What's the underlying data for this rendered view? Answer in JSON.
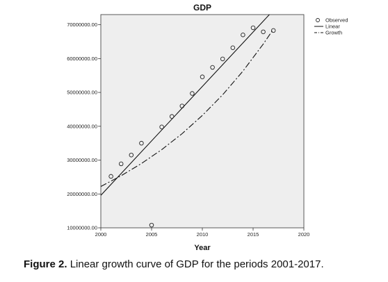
{
  "chart_data": {
    "type": "scatter",
    "title": "GDP",
    "xlabel": "Year",
    "ylabel": "",
    "xlim": [
      2000,
      2020
    ],
    "ylim": [
      10000000,
      73000000
    ],
    "xticks": [
      2000,
      2005,
      2010,
      2015,
      2020
    ],
    "xtick_labels": [
      "2000",
      "2005",
      "2010",
      "2015",
      "2020"
    ],
    "yticks": [
      10000000,
      20000000,
      30000000,
      40000000,
      50000000,
      60000000,
      70000000
    ],
    "ytick_labels": [
      "10000000.00",
      "20000000.00",
      "30000000.00",
      "40000000.00",
      "50000000.00",
      "60000000.00",
      "70000000.00"
    ],
    "grid": false,
    "background": "#eeeeee",
    "legend_position": "top-right outside",
    "series": [
      {
        "name": "Observed",
        "kind": "points",
        "marker": "open-circle",
        "x": [
          2001,
          2002,
          2003,
          2004,
          2005,
          2006,
          2007,
          2008,
          2009,
          2010,
          2011,
          2012,
          2013,
          2014,
          2015,
          2016,
          2017
        ],
        "y": [
          25200000,
          28900000,
          31500000,
          35000000,
          10800000,
          39800000,
          42900000,
          46000000,
          49700000,
          54600000,
          57400000,
          59900000,
          63200000,
          67000000,
          69100000,
          67900000,
          68300000
        ]
      },
      {
        "name": "Linear",
        "kind": "line",
        "style": "solid",
        "x": [
          2000,
          2016.6
        ],
        "y": [
          19600000,
          73000000
        ]
      },
      {
        "name": "Growth",
        "kind": "line",
        "style": "dashdot",
        "x": [
          2000,
          2002,
          2004,
          2006,
          2008,
          2010,
          2012,
          2014,
          2016,
          2017
        ],
        "y": [
          22200000,
          25400000,
          29000000,
          33100000,
          37800000,
          43200000,
          49300000,
          56300000,
          64300000,
          68700000
        ]
      }
    ]
  },
  "caption": {
    "label": "Figure 2.",
    "text": "Linear growth curve of GDP for the periods 2001-2017."
  }
}
